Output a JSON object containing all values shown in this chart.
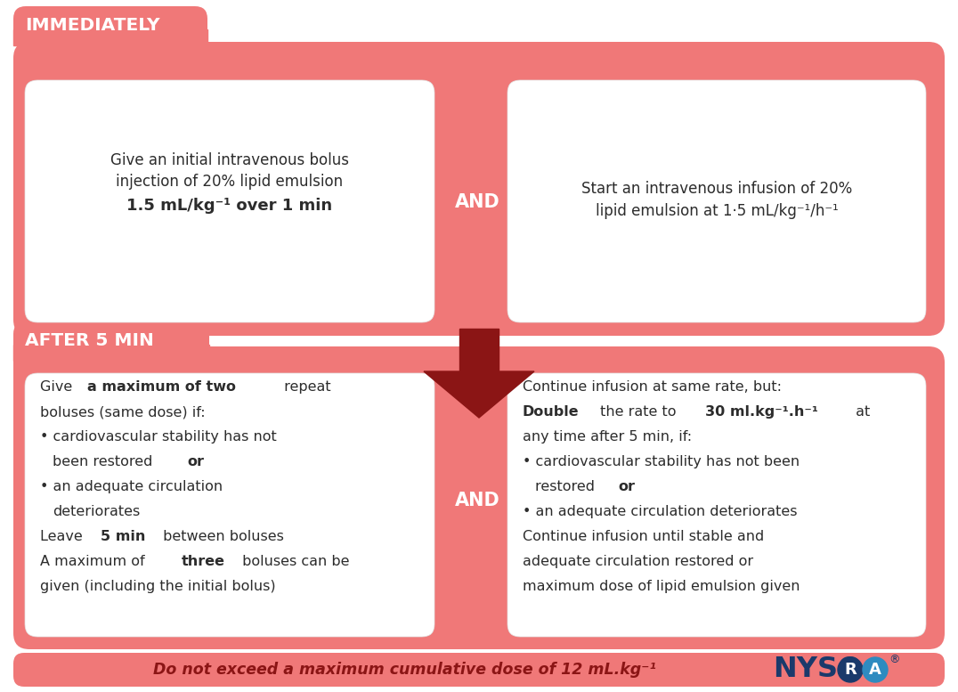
{
  "bg_color": "#FFFFFF",
  "salmon_color": "#F07878",
  "white_color": "#FFFFFF",
  "dark_red": "#8B1515",
  "arrow_color": "#8B1515",
  "text_dark": "#2C2C2C",
  "nysora_blue": "#1A3A6B",
  "nysora_circle_blue": "#2E8BC0",
  "nysora_circle_dark": "#1A3A6B",
  "immediately_label": "IMMEDIATELY",
  "after5min_label": "AFTER 5 MIN",
  "and_label": "AND",
  "notice_text": "Do not exceed a maximum cumulative dose of 12 mL.kg",
  "notice_superscript": "-1"
}
